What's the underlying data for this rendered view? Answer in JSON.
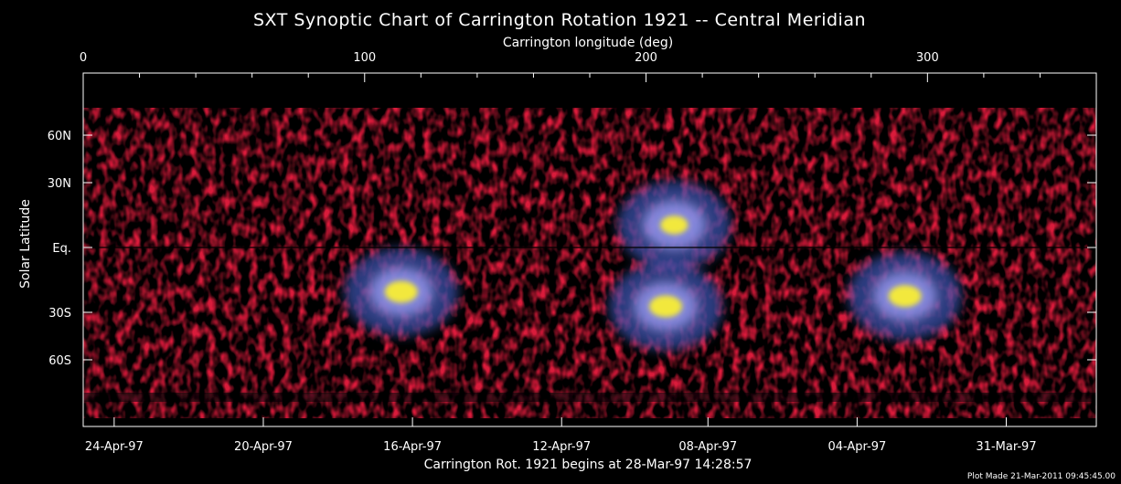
{
  "chart_data": {
    "type": "heatmap",
    "title": "SXT Synoptic Chart of Carrington Rotation 1921 -- Central Meridian",
    "top_axis": {
      "label": "Carrington longitude (deg)",
      "range": [
        0,
        360
      ],
      "ticks": [
        {
          "value": 0,
          "label": "0"
        },
        {
          "value": 100,
          "label": "100"
        },
        {
          "value": 200,
          "label": "200"
        },
        {
          "value": 300,
          "label": "300"
        }
      ]
    },
    "y_axis": {
      "label": "Solar Latitude",
      "scale": "sine",
      "range": [
        -90,
        90
      ],
      "ticks": [
        {
          "value": 60,
          "label": "60N"
        },
        {
          "value": 30,
          "label": "30N"
        },
        {
          "value": 0,
          "label": "Eq."
        },
        {
          "value": -30,
          "label": "30S"
        },
        {
          "value": -60,
          "label": "60S"
        }
      ]
    },
    "bottom_axis": {
      "label": "Carrington Rot. 1921 begins at 28-Mar-97 14:28:57",
      "ticks": [
        {
          "longitude": 11,
          "label": "24-Apr-97"
        },
        {
          "longitude": 64,
          "label": "20-Apr-97"
        },
        {
          "longitude": 117,
          "label": "16-Apr-97"
        },
        {
          "longitude": 170,
          "label": "12-Apr-97"
        },
        {
          "longitude": 222,
          "label": "08-Apr-97"
        },
        {
          "longitude": 275,
          "label": "04-Apr-97"
        },
        {
          "longitude": 328,
          "label": "31-Mar-97"
        }
      ]
    },
    "equator_line": true,
    "active_regions": [
      {
        "longitude": 113,
        "latitude": -20,
        "intensity": 1.0
      },
      {
        "longitude": 207,
        "latitude": -27,
        "intensity": 1.0
      },
      {
        "longitude": 210,
        "latitude": 10,
        "intensity": 0.8
      },
      {
        "longitude": 292,
        "latitude": -22,
        "intensity": 1.0
      }
    ],
    "plot_made": "Plot Made 21-Mar-2011 09:45:45.00"
  }
}
